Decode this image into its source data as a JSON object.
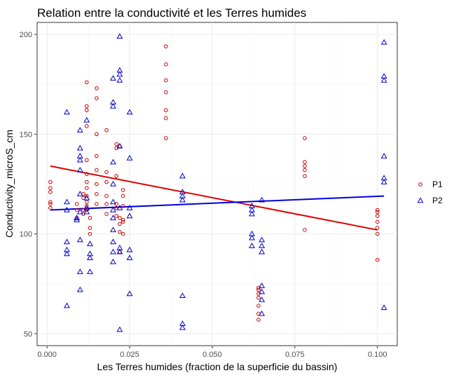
{
  "chart_data": {
    "type": "scatter",
    "title": "Relation entre la conductivité et les Terres humides",
    "xlabel": "Les Terres humides (fraction de la superficie du bassin)",
    "ylabel": "Conductivity_microS_cm",
    "xlim": [
      -0.003,
      0.106
    ],
    "ylim": [
      44,
      206
    ],
    "x_ticks": [
      0,
      0.025,
      0.05,
      0.075,
      0.1
    ],
    "x_tick_labels": [
      "0.000",
      "0.025",
      "0.050",
      "0.075",
      "0.100"
    ],
    "y_ticks": [
      50,
      100,
      150,
      200
    ],
    "y_tick_labels": [
      "50",
      "100",
      "150",
      "200"
    ],
    "grid": true,
    "legend_position": "right",
    "series": [
      {
        "name": "P1",
        "marker": "circle",
        "color": "#cc0000",
        "points": [
          [
            0.001,
            126
          ],
          [
            0.001,
            123
          ],
          [
            0.001,
            121
          ],
          [
            0.001,
            116
          ],
          [
            0.001,
            115
          ],
          [
            0.001,
            113
          ],
          [
            0.009,
            115
          ],
          [
            0.009,
            112
          ],
          [
            0.009,
            108
          ],
          [
            0.011,
            120
          ],
          [
            0.011,
            118
          ],
          [
            0.011,
            112
          ],
          [
            0.011,
            110
          ],
          [
            0.012,
            176
          ],
          [
            0.012,
            164
          ],
          [
            0.012,
            162
          ],
          [
            0.012,
            154
          ],
          [
            0.012,
            137
          ],
          [
            0.012,
            130
          ],
          [
            0.012,
            126
          ],
          [
            0.012,
            123
          ],
          [
            0.012,
            119
          ],
          [
            0.012,
            116
          ],
          [
            0.012,
            114
          ],
          [
            0.012,
            112
          ],
          [
            0.013,
            108
          ],
          [
            0.013,
            103
          ],
          [
            0.013,
            100
          ],
          [
            0.015,
            173
          ],
          [
            0.015,
            168
          ],
          [
            0.015,
            150
          ],
          [
            0.015,
            139
          ],
          [
            0.015,
            132
          ],
          [
            0.015,
            125
          ],
          [
            0.015,
            120
          ],
          [
            0.015,
            115
          ],
          [
            0.018,
            152
          ],
          [
            0.018,
            131
          ],
          [
            0.018,
            126
          ],
          [
            0.018,
            119
          ],
          [
            0.018,
            115
          ],
          [
            0.018,
            110
          ],
          [
            0.021,
            145
          ],
          [
            0.021,
            143
          ],
          [
            0.021,
            129
          ],
          [
            0.021,
            115
          ],
          [
            0.021,
            113
          ],
          [
            0.021,
            109
          ],
          [
            0.022,
            144
          ],
          [
            0.022,
            108
          ],
          [
            0.022,
            105
          ],
          [
            0.022,
            101
          ],
          [
            0.022,
            91
          ],
          [
            0.023,
            122
          ],
          [
            0.023,
            119
          ],
          [
            0.023,
            114
          ],
          [
            0.023,
            107
          ],
          [
            0.023,
            106
          ],
          [
            0.023,
            100
          ],
          [
            0.036,
            194
          ],
          [
            0.036,
            185
          ],
          [
            0.036,
            177
          ],
          [
            0.036,
            171
          ],
          [
            0.036,
            162
          ],
          [
            0.036,
            158
          ],
          [
            0.036,
            148
          ],
          [
            0.064,
            73
          ],
          [
            0.064,
            72
          ],
          [
            0.064,
            70
          ],
          [
            0.064,
            68
          ],
          [
            0.064,
            64
          ],
          [
            0.064,
            60
          ],
          [
            0.064,
            57
          ],
          [
            0.078,
            148
          ],
          [
            0.078,
            136
          ],
          [
            0.078,
            134
          ],
          [
            0.078,
            132
          ],
          [
            0.078,
            129
          ],
          [
            0.078,
            102
          ],
          [
            0.1,
            112
          ],
          [
            0.1,
            111
          ],
          [
            0.1,
            109
          ],
          [
            0.1,
            106
          ],
          [
            0.1,
            103
          ],
          [
            0.1,
            100
          ],
          [
            0.1,
            87
          ]
        ],
        "fit_line": [
          [
            0.001,
            134
          ],
          [
            0.1,
            102
          ]
        ]
      },
      {
        "name": "P2",
        "marker": "triangle",
        "color": "#0000cc",
        "points": [
          [
            0.006,
            161
          ],
          [
            0.006,
            116
          ],
          [
            0.006,
            112
          ],
          [
            0.006,
            96
          ],
          [
            0.006,
            92
          ],
          [
            0.006,
            90
          ],
          [
            0.006,
            64
          ],
          [
            0.009,
            108
          ],
          [
            0.009,
            107
          ],
          [
            0.01,
            143
          ],
          [
            0.01,
            139
          ],
          [
            0.01,
            137
          ],
          [
            0.01,
            132
          ],
          [
            0.01,
            152
          ],
          [
            0.01,
            120
          ],
          [
            0.01,
            111
          ],
          [
            0.01,
            97
          ],
          [
            0.01,
            81
          ],
          [
            0.01,
            72
          ],
          [
            0.012,
            157
          ],
          [
            0.012,
            118
          ],
          [
            0.012,
            113
          ],
          [
            0.012,
            111
          ],
          [
            0.013,
            95
          ],
          [
            0.013,
            90
          ],
          [
            0.013,
            88
          ],
          [
            0.013,
            81
          ],
          [
            0.02,
            178
          ],
          [
            0.02,
            166
          ],
          [
            0.02,
            164
          ],
          [
            0.02,
            136
          ],
          [
            0.02,
            125
          ],
          [
            0.02,
            116
          ],
          [
            0.02,
            112
          ],
          [
            0.02,
            108
          ],
          [
            0.02,
            102
          ],
          [
            0.02,
            96
          ],
          [
            0.02,
            91
          ],
          [
            0.02,
            86
          ],
          [
            0.022,
            199
          ],
          [
            0.022,
            182
          ],
          [
            0.022,
            180
          ],
          [
            0.022,
            177
          ],
          [
            0.022,
            144
          ],
          [
            0.022,
            113
          ],
          [
            0.022,
            93
          ],
          [
            0.022,
            91
          ],
          [
            0.022,
            52
          ],
          [
            0.025,
            161
          ],
          [
            0.025,
            138
          ],
          [
            0.025,
            113
          ],
          [
            0.025,
            109
          ],
          [
            0.025,
            92
          ],
          [
            0.025,
            88
          ],
          [
            0.025,
            70
          ],
          [
            0.041,
            129
          ],
          [
            0.041,
            121
          ],
          [
            0.041,
            119
          ],
          [
            0.041,
            117
          ],
          [
            0.041,
            69
          ],
          [
            0.041,
            55
          ],
          [
            0.041,
            53
          ],
          [
            0.062,
            114
          ],
          [
            0.062,
            112
          ],
          [
            0.062,
            110
          ],
          [
            0.062,
            100
          ],
          [
            0.062,
            98
          ],
          [
            0.062,
            94
          ],
          [
            0.065,
            117
          ],
          [
            0.065,
            97
          ],
          [
            0.065,
            94
          ],
          [
            0.065,
            91
          ],
          [
            0.065,
            74
          ],
          [
            0.065,
            71
          ],
          [
            0.065,
            67
          ],
          [
            0.065,
            60
          ],
          [
            0.102,
            196
          ],
          [
            0.102,
            179
          ],
          [
            0.102,
            177
          ],
          [
            0.102,
            139
          ],
          [
            0.102,
            128
          ],
          [
            0.102,
            126
          ],
          [
            0.102,
            63
          ]
        ],
        "fit_line": [
          [
            0.001,
            112
          ],
          [
            0.102,
            119
          ]
        ]
      }
    ]
  }
}
